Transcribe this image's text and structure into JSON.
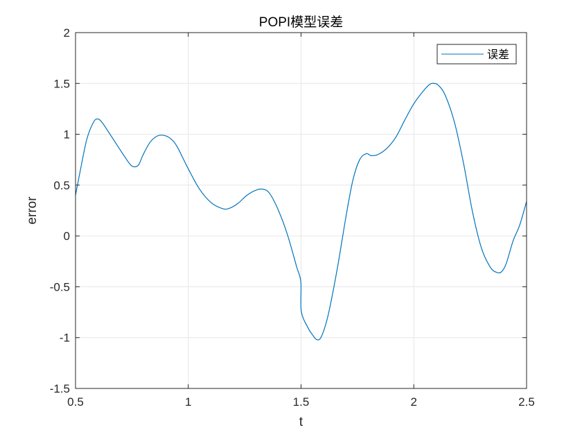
{
  "chart_data": {
    "type": "line",
    "title": "POPI模型误差",
    "xlabel": "t",
    "ylabel": "error",
    "xlim": [
      0.5,
      2.5
    ],
    "ylim": [
      -1.5,
      2
    ],
    "x_ticks": [
      0.5,
      1,
      1.5,
      2,
      2.5
    ],
    "x_tick_labels": [
      "0.5",
      "1",
      "1.5",
      "2",
      "2.5"
    ],
    "y_ticks": [
      -1.5,
      -1,
      -0.5,
      0,
      0.5,
      1,
      1.5,
      2
    ],
    "y_tick_labels": [
      "-1.5",
      "-1",
      "-0.5",
      "0",
      "0.5",
      "1",
      "1.5",
      "2"
    ],
    "grid": true,
    "legend_position": "top-right",
    "series": [
      {
        "name": "误差",
        "color": "#0072BD",
        "x": [
          0.5,
          0.52,
          0.55,
          0.58,
          0.6,
          0.62,
          0.65,
          0.7,
          0.74,
          0.76,
          0.78,
          0.8,
          0.83,
          0.86,
          0.89,
          0.92,
          0.95,
          1.0,
          1.05,
          1.1,
          1.15,
          1.18,
          1.22,
          1.26,
          1.3,
          1.33,
          1.36,
          1.4,
          1.44,
          1.48,
          1.499,
          1.501,
          1.53,
          1.55,
          1.57,
          1.59,
          1.62,
          1.66,
          1.7,
          1.73,
          1.76,
          1.79,
          1.81,
          1.84,
          1.88,
          1.92,
          1.96,
          2.0,
          2.04,
          2.07,
          2.09,
          2.11,
          2.14,
          2.18,
          2.22,
          2.26,
          2.3,
          2.34,
          2.37,
          2.39,
          2.41,
          2.44,
          2.47,
          2.5
        ],
        "y": [
          0.4,
          0.63,
          0.95,
          1.12,
          1.15,
          1.11,
          1.01,
          0.84,
          0.71,
          0.68,
          0.7,
          0.8,
          0.92,
          0.98,
          0.99,
          0.96,
          0.88,
          0.66,
          0.46,
          0.33,
          0.27,
          0.27,
          0.32,
          0.4,
          0.45,
          0.46,
          0.42,
          0.25,
          0.01,
          -0.3,
          -0.45,
          -0.74,
          -0.9,
          -0.97,
          -1.02,
          -0.99,
          -0.78,
          -0.33,
          0.2,
          0.55,
          0.75,
          0.81,
          0.79,
          0.8,
          0.86,
          0.97,
          1.14,
          1.3,
          1.42,
          1.49,
          1.5,
          1.48,
          1.38,
          1.12,
          0.72,
          0.24,
          -0.12,
          -0.31,
          -0.36,
          -0.35,
          -0.27,
          -0.05,
          0.11,
          0.34
        ]
      }
    ]
  }
}
